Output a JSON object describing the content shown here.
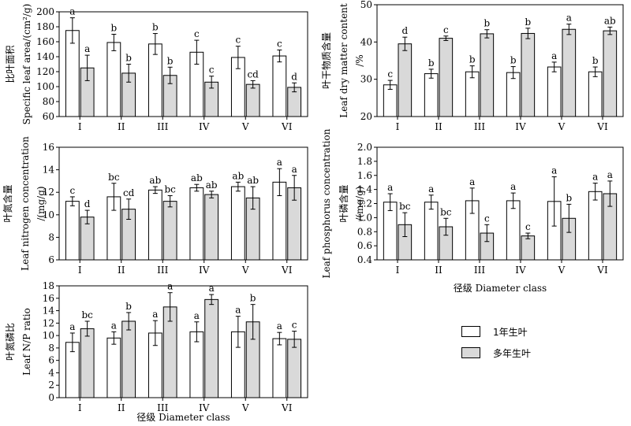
{
  "colors": {
    "annual": "#ffffff",
    "perennial": "#d9d9d9",
    "axis": "#000000"
  },
  "legend": {
    "annual": "1年生叶",
    "perennial": "多年生叶"
  },
  "chart_data": [
    {
      "type": "bar",
      "panel": "A",
      "categories": [
        "I",
        "II",
        "III",
        "IV",
        "V",
        "VI"
      ],
      "ylabel_cn": "比叶面积",
      "ylabel": "Specific leaf area/(cm²/g)",
      "ylim": [
        60,
        200
      ],
      "yticks": [
        60,
        80,
        100,
        120,
        140,
        160,
        180,
        200
      ],
      "xlabel": "",
      "series": [
        {
          "values": [
            175,
            159,
            157,
            146,
            139,
            141
          ],
          "errors": [
            17,
            11,
            14,
            16,
            15,
            8
          ],
          "letters": [
            "a",
            "b",
            "b",
            "c",
            "c",
            "c"
          ]
        },
        {
          "values": [
            125,
            118,
            115,
            106,
            103,
            99
          ],
          "errors": [
            17,
            12,
            11,
            8,
            5,
            6
          ],
          "letters": [
            "a",
            "b",
            "b",
            "c",
            "cd",
            "d"
          ]
        }
      ]
    },
    {
      "type": "bar",
      "panel": "B",
      "categories": [
        "I",
        "II",
        "III",
        "IV",
        "V",
        "VI"
      ],
      "ylabel_cn": "叶干物质含量",
      "ylabel": "Leaf dry matter content",
      "yunit": "/%",
      "ylim": [
        20,
        50
      ],
      "yticks": [
        20,
        30,
        40,
        50
      ],
      "xlabel": "",
      "series": [
        {
          "values": [
            28.5,
            31.5,
            32.0,
            31.8,
            33.3,
            32.0
          ],
          "errors": [
            1.2,
            1.2,
            1.6,
            1.6,
            1.3,
            1.3
          ],
          "letters": [
            "c",
            "b",
            "b",
            "b",
            "a",
            "b"
          ]
        },
        {
          "values": [
            39.5,
            41.0,
            42.2,
            42.3,
            43.4,
            43.0
          ],
          "errors": [
            1.8,
            0.6,
            1.1,
            1.4,
            1.4,
            1.0
          ],
          "letters": [
            "d",
            "c",
            "b",
            "b",
            "a",
            "ab"
          ]
        }
      ]
    },
    {
      "type": "bar",
      "panel": "C",
      "categories": [
        "I",
        "II",
        "III",
        "IV",
        "V",
        "VI"
      ],
      "ylabel_cn": "叶氮含量",
      "ylabel": "Leaf nitrogen concentration",
      "yunit": "/(mg/g)",
      "ylim": [
        6,
        16
      ],
      "yticks": [
        6,
        8,
        10,
        12,
        14,
        16
      ],
      "xlabel": "",
      "series": [
        {
          "values": [
            11.2,
            11.6,
            12.2,
            12.4,
            12.5,
            12.9
          ],
          "errors": [
            0.4,
            1.2,
            0.3,
            0.3,
            0.4,
            1.2
          ],
          "letters": [
            "c",
            "bc",
            "ab",
            "ab",
            "ab",
            "a"
          ]
        },
        {
          "values": [
            9.8,
            10.5,
            11.2,
            11.8,
            11.5,
            12.4
          ],
          "errors": [
            0.6,
            0.9,
            0.5,
            0.3,
            1.0,
            1.1
          ],
          "letters": [
            "d",
            "cd",
            "bc",
            "ab",
            "ab",
            "a"
          ]
        }
      ]
    },
    {
      "type": "bar",
      "panel": "D",
      "categories": [
        "I",
        "II",
        "III",
        "IV",
        "V",
        "VI"
      ],
      "ylabel_cn": "叶磷含量",
      "ylabel": "Leaf phosphorus concentration",
      "yunit": "/(mg/g)",
      "ylim": [
        0.4,
        2.0
      ],
      "yticks": [
        "0.4",
        "0.6",
        "0.8",
        "1.0",
        "1.2",
        "1.4",
        "1.6",
        "1.8",
        "2.0"
      ],
      "xlabel_cn": "径级",
      "xlabel": "Diameter class",
      "series": [
        {
          "values": [
            1.22,
            1.22,
            1.24,
            1.24,
            1.23,
            1.37
          ],
          "errors": [
            0.12,
            0.1,
            0.18,
            0.11,
            0.35,
            0.12
          ],
          "letters": [
            "a",
            "a",
            "a",
            "a",
            "a",
            "a"
          ]
        },
        {
          "values": [
            0.9,
            0.87,
            0.78,
            0.74,
            0.99,
            1.34
          ],
          "errors": [
            0.17,
            0.12,
            0.12,
            0.04,
            0.2,
            0.18
          ],
          "letters": [
            "bc",
            "bc",
            "c",
            "c",
            "b",
            "a"
          ]
        }
      ]
    },
    {
      "type": "bar",
      "panel": "E",
      "categories": [
        "I",
        "II",
        "III",
        "IV",
        "V",
        "VI"
      ],
      "ylabel_cn": "叶氮磷比",
      "ylabel": "Leaf N/P ratio",
      "ylim": [
        0,
        18
      ],
      "yticks": [
        0,
        2,
        4,
        6,
        8,
        10,
        12,
        14,
        16,
        18
      ],
      "xlabel_cn": "径级",
      "xlabel": "Diameter class",
      "series": [
        {
          "values": [
            8.9,
            9.6,
            10.4,
            10.6,
            10.6,
            9.5
          ],
          "errors": [
            1.5,
            1.0,
            2.0,
            1.6,
            2.5,
            1.0
          ],
          "letters": [
            "a",
            "a",
            "a",
            "a",
            "a",
            "a"
          ]
        },
        {
          "values": [
            11.1,
            12.3,
            14.6,
            15.8,
            12.2,
            9.4
          ],
          "errors": [
            1.2,
            1.4,
            2.3,
            0.8,
            2.8,
            1.3
          ],
          "letters": [
            "bc",
            "b",
            "a",
            "a",
            "b",
            "c"
          ]
        }
      ]
    }
  ]
}
